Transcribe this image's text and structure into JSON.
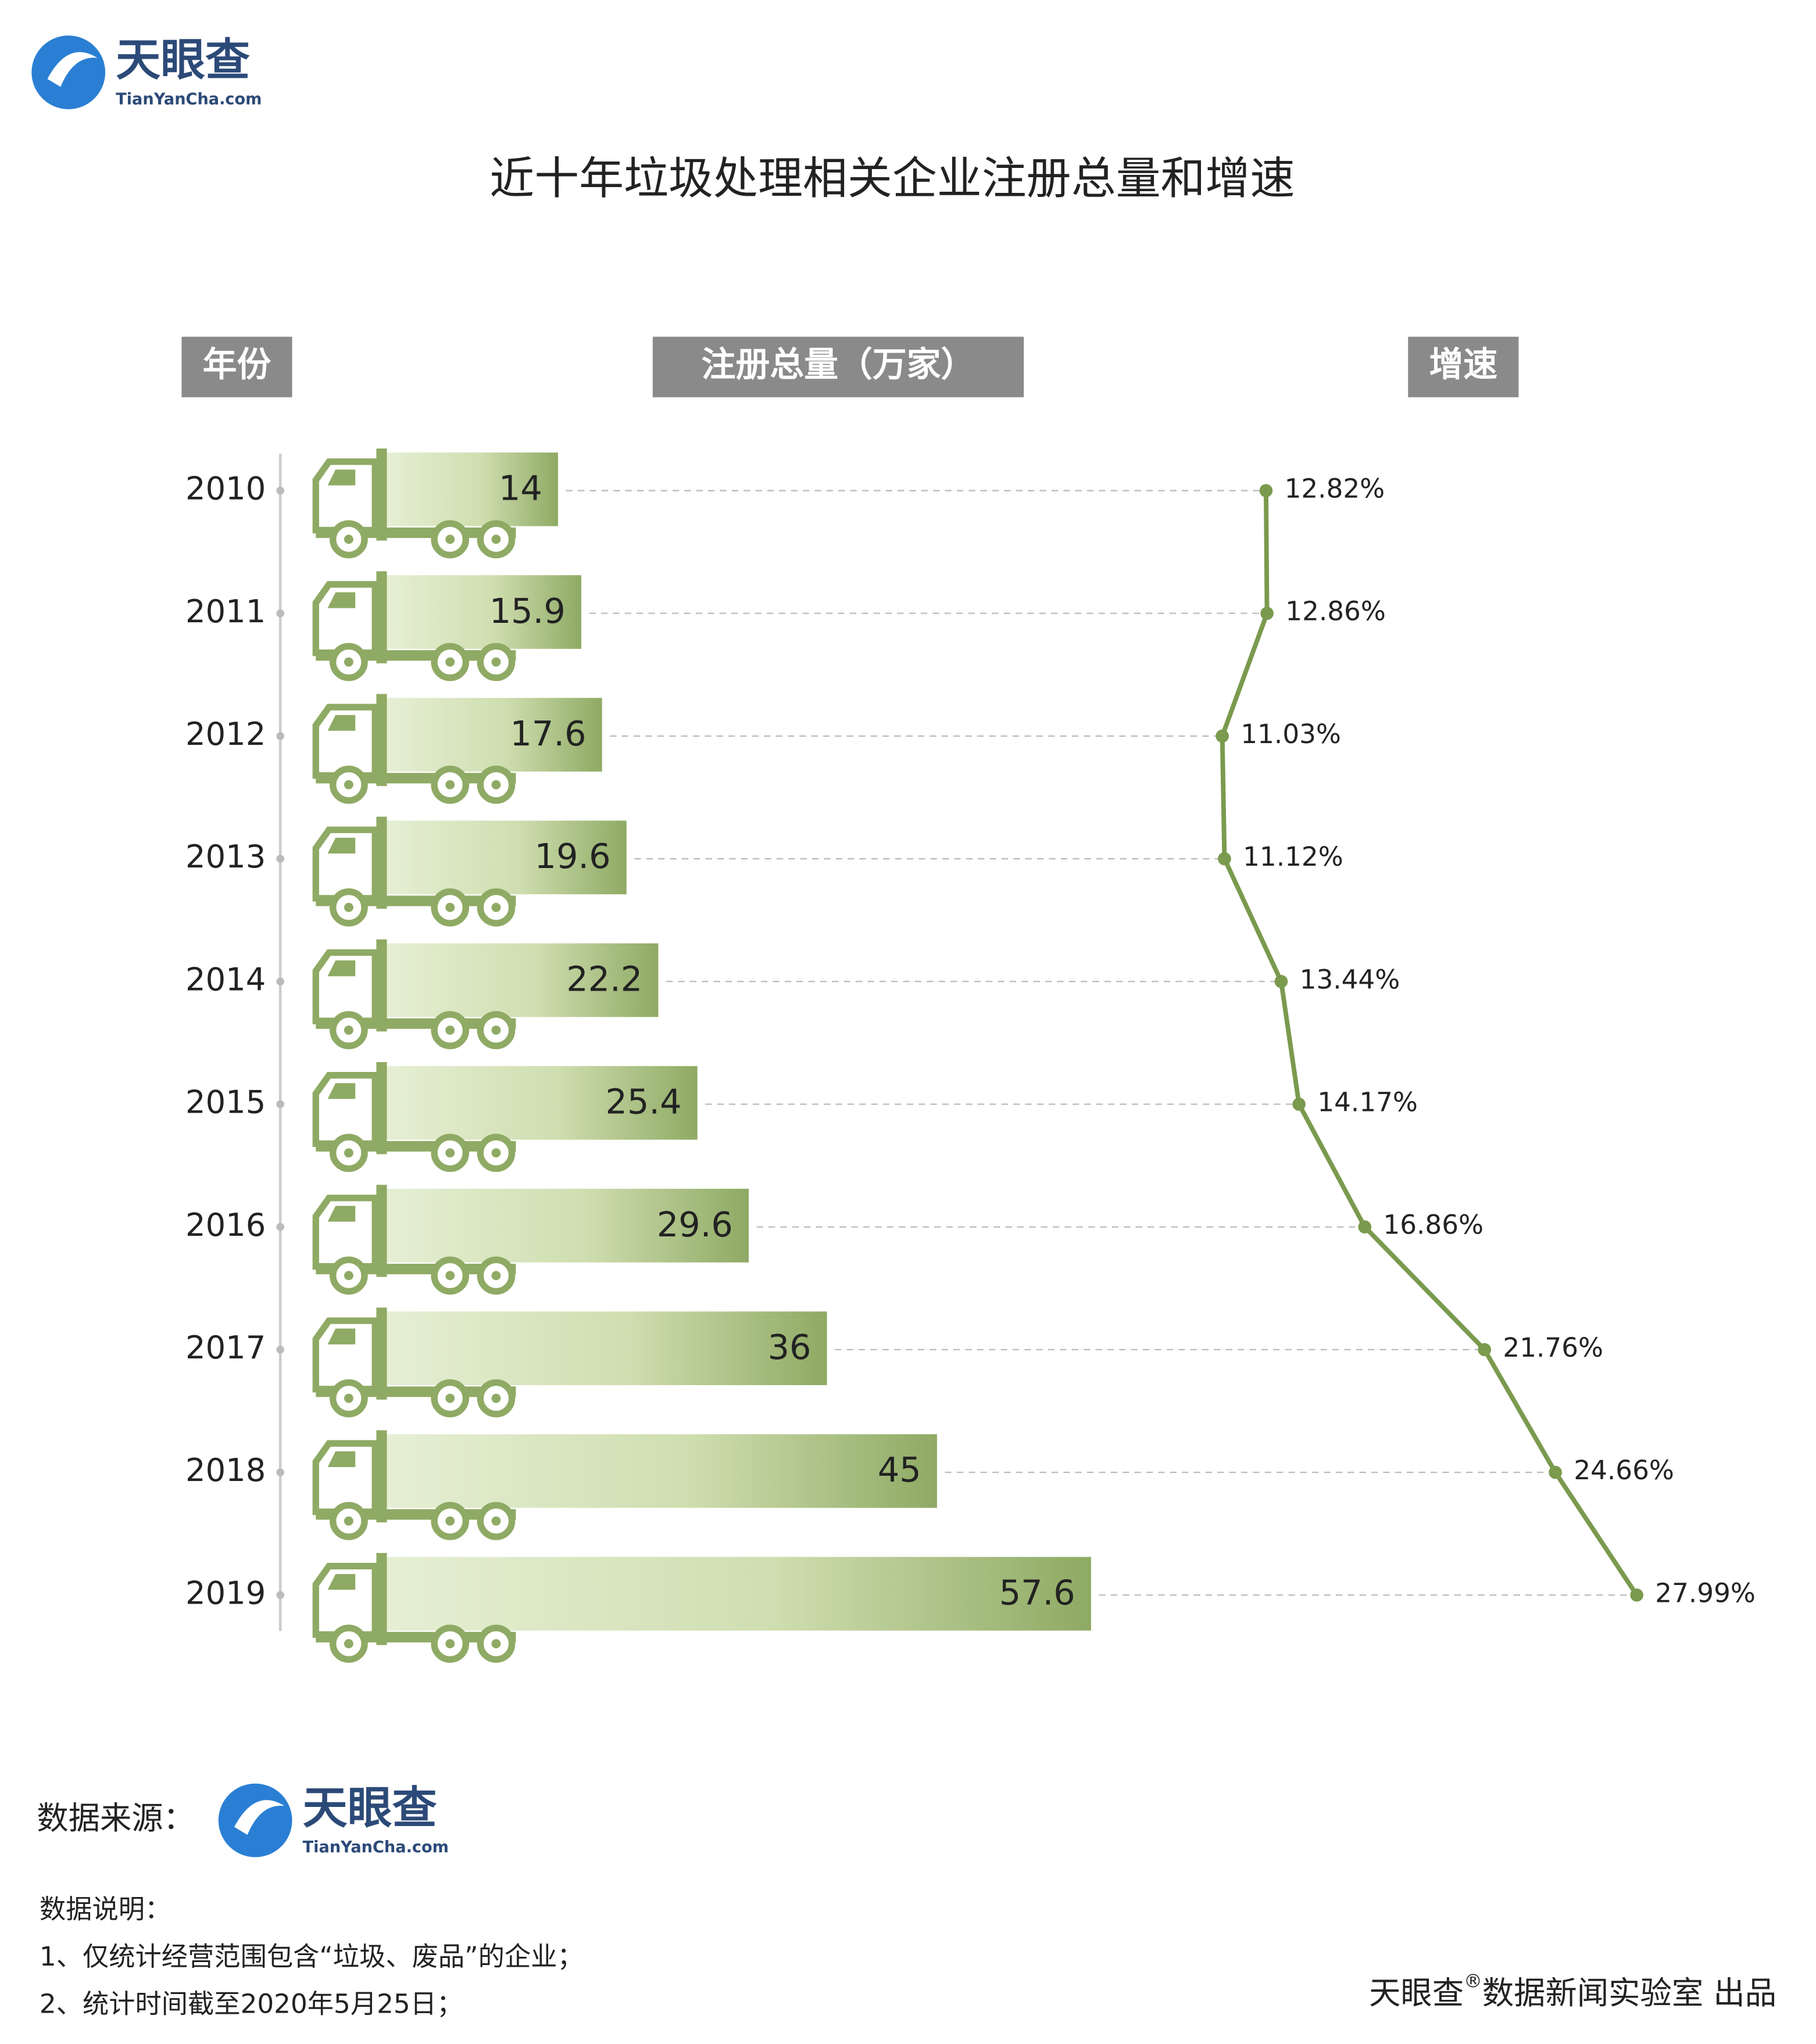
{
  "header": {
    "logo": "天眼查",
    "logo_sub": "TianYanCha.com"
  },
  "chart_data": {
    "type": "bar",
    "title": "近十年垃圾处理相关企业注册总量和增速",
    "category_label": "年份",
    "categories": [
      "2010",
      "2011",
      "2012",
      "2013",
      "2014",
      "2015",
      "2016",
      "2017",
      "2018",
      "2019"
    ],
    "series": [
      {
        "name": "注册总量（万家）",
        "color": "#8faa64",
        "values": [
          14,
          15.9,
          17.6,
          19.6,
          22.2,
          25.4,
          29.6,
          36,
          45,
          57.6
        ]
      },
      {
        "name": "增速",
        "type": "line",
        "color": "#7a9a4e",
        "values": [
          12.82,
          12.86,
          11.03,
          11.12,
          13.44,
          14.17,
          16.86,
          21.76,
          24.66,
          27.99
        ],
        "value_labels": [
          "12.82%",
          "12.86%",
          "11.03%",
          "11.12%",
          "13.44%",
          "14.17%",
          "16.86%",
          "21.76%",
          "24.66%",
          "27.99%"
        ]
      }
    ]
  },
  "footer": {
    "source_label": "数据来源：",
    "source_logo": "天眼查",
    "source_logo_sub": "TianYanCha.com",
    "notes_title": "数据说明：",
    "notes": [
      "1、仅统计经营范围包含“垃圾、废品”的企业；",
      "2、统计时间截至2020年5月25日；"
    ],
    "credit": [
      "天眼查",
      "®",
      "数据新闻实验室 出品"
    ]
  }
}
